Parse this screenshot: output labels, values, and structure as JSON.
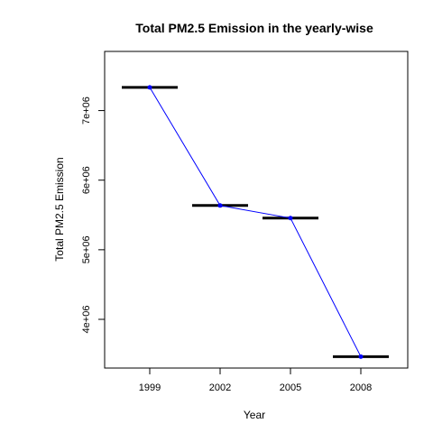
{
  "chart_data": {
    "type": "line",
    "title": "Total PM2.5 Emission in the yearly-wise",
    "xlabel": "Year",
    "ylabel": "Total PM2.5 Emission",
    "categories": [
      "1999",
      "2002",
      "2005",
      "2008"
    ],
    "series": [
      {
        "values": [
          7332967,
          5635780,
          5454703,
          3464206
        ]
      }
    ],
    "ylim": [
      3300000,
      7850000
    ],
    "yticks": [
      4000000,
      5000000,
      6000000,
      7000000
    ],
    "ytick_labels": [
      "4e+06",
      "5e+06",
      "6e+06",
      "7e+06"
    ],
    "grid": false,
    "line_color": "#0000ff",
    "point_color": "#0000ff",
    "bar_color": "#000000"
  }
}
